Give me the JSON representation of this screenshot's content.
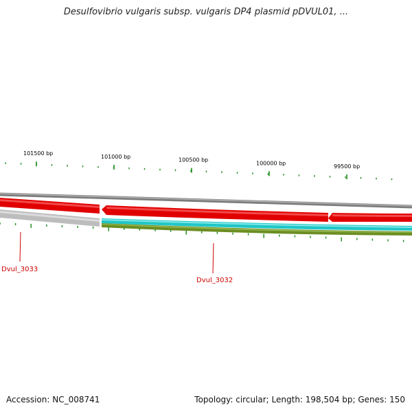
{
  "title": "Desulfovibrio vulgaris subsp. vulgaris DP4 plasmid pDVUL01, ...",
  "colors": {
    "background": "#ffffff",
    "backbone": "#8c8c8c",
    "cds_forward": "#e60000",
    "cds_reverse_grey": "#bdbdbd",
    "gc_content": "#1fc9c9",
    "gc_skew": "#6b8e23",
    "tick": "#1a8a1a",
    "gene_label": "#cc0000"
  },
  "ticks": [
    {
      "label": "101500 bp"
    },
    {
      "label": "101000 bp"
    },
    {
      "label": "100500 bp"
    },
    {
      "label": "100000 bp"
    },
    {
      "label": "99500 bp"
    }
  ],
  "genes": [
    {
      "name": "Dvul_3033"
    },
    {
      "name": "Dvul_3032"
    }
  ],
  "footer": {
    "accession": "Accession: NC_008741",
    "summary": "Topology: circular; Length: 198,504 bp; Genes: 150"
  }
}
